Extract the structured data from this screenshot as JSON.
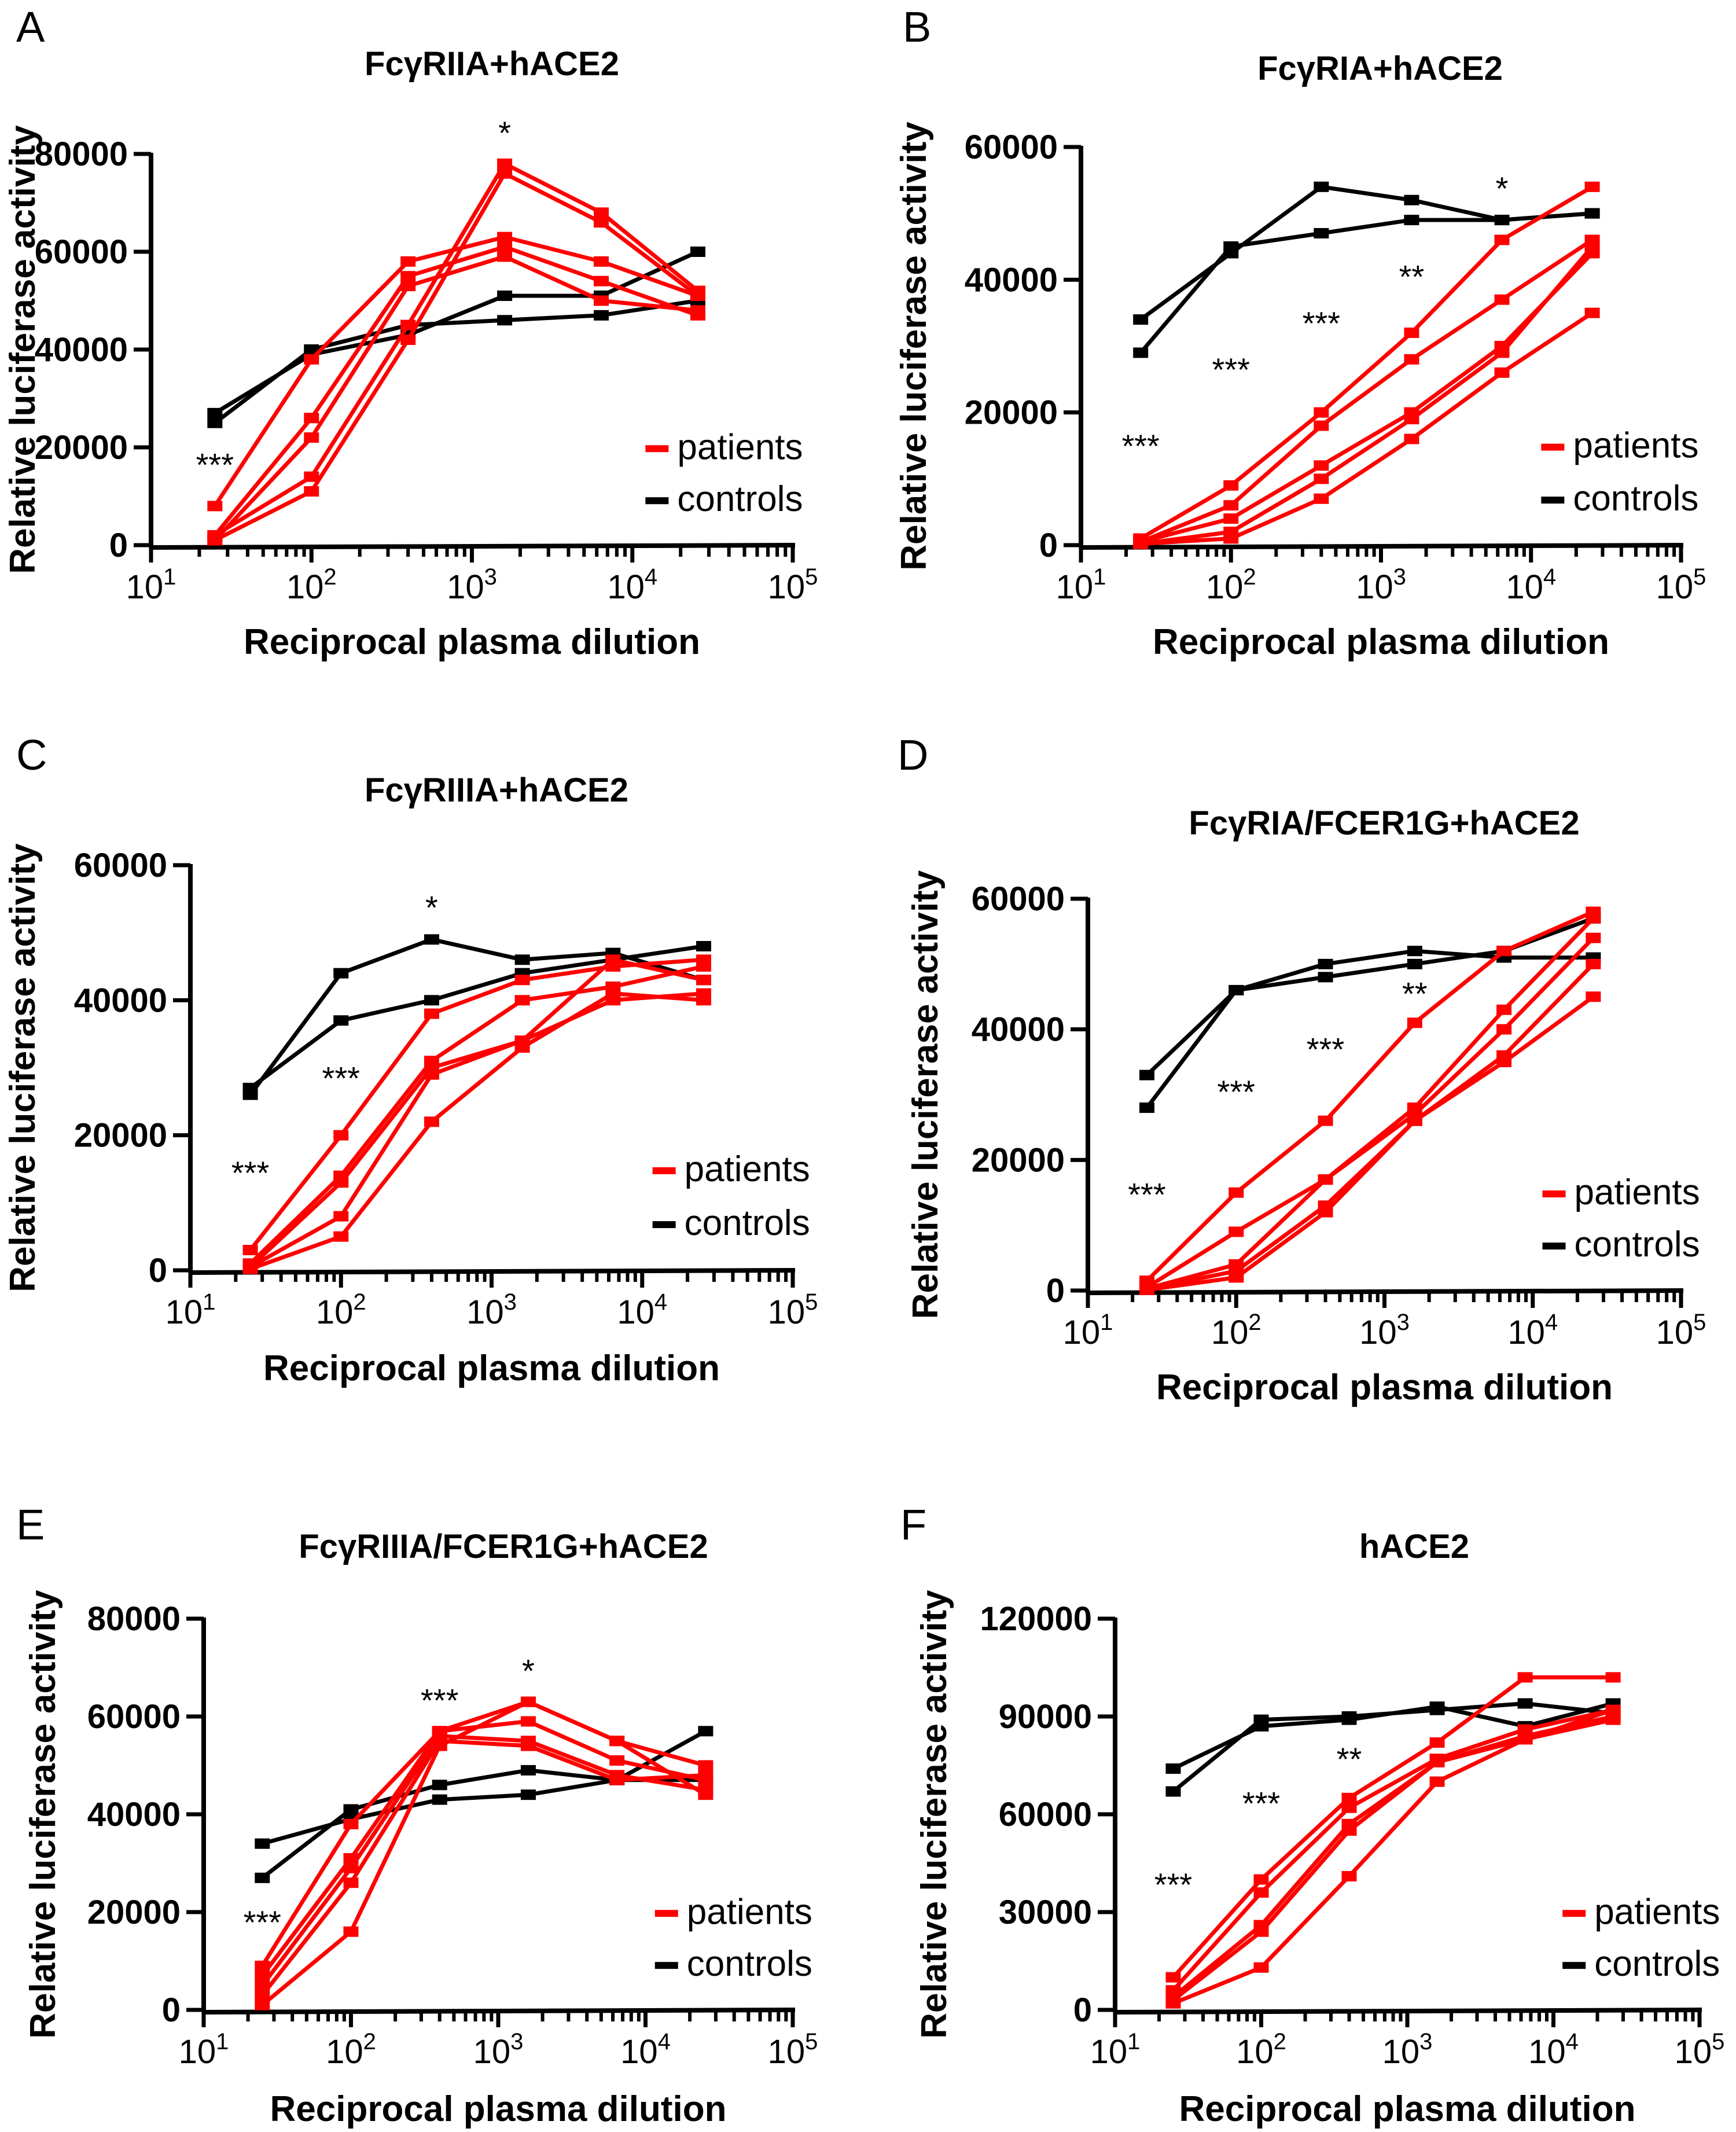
{
  "chart_data": [
    {
      "panel": "A",
      "type": "line",
      "title": "FcγRIIA+hACE2",
      "xlabel": "Reciprocal plasma dilution",
      "ylabel": "Relative luciferase activity",
      "xscale": "log",
      "xlim": [
        10,
        100000
      ],
      "ylim": [
        0,
        80000
      ],
      "yticks": [
        0,
        20000,
        40000,
        60000,
        80000
      ],
      "x": [
        25,
        100,
        400,
        1600,
        6400,
        25600
      ],
      "legend": {
        "position": "bottom-right",
        "entries": [
          {
            "label": "patients",
            "color": "#ff0000"
          },
          {
            "label": "controls",
            "color": "#000000"
          }
        ]
      },
      "series": [
        {
          "group": "patients",
          "values": [
            8000,
            38000,
            58000,
            63000,
            58000,
            51000
          ]
        },
        {
          "group": "patients",
          "values": [
            2000,
            26000,
            55000,
            61000,
            54000,
            47000
          ]
        },
        {
          "group": "patients",
          "values": [
            1000,
            22000,
            53000,
            59000,
            50000,
            48000
          ]
        },
        {
          "group": "patients",
          "values": [
            2000,
            14000,
            45000,
            78000,
            68000,
            52000
          ]
        },
        {
          "group": "patients",
          "values": [
            1000,
            11000,
            42000,
            76000,
            66000,
            51000
          ]
        },
        {
          "group": "controls",
          "values": [
            25000,
            40000,
            45000,
            46000,
            47000,
            50000
          ]
        },
        {
          "group": "controls",
          "values": [
            27000,
            39000,
            43000,
            51000,
            51000,
            60000
          ]
        }
      ],
      "significance": [
        {
          "x": 25,
          "label": "***"
        },
        {
          "x": 1600,
          "label": "*"
        }
      ]
    },
    {
      "panel": "B",
      "type": "line",
      "title": "FcγRIA+hACE2",
      "xlabel": "Reciprocal plasma dilution",
      "ylabel": "Relative luciferase activity",
      "xscale": "log",
      "xlim": [
        10,
        100000
      ],
      "ylim": [
        0,
        60000
      ],
      "yticks": [
        0,
        20000,
        40000,
        60000
      ],
      "x": [
        25,
        100,
        400,
        1600,
        6400,
        25600
      ],
      "legend": {
        "position": "bottom-right",
        "entries": [
          {
            "label": "patients",
            "color": "#ff0000"
          },
          {
            "label": "controls",
            "color": "#000000"
          }
        ]
      },
      "series": [
        {
          "group": "patients",
          "values": [
            1000,
            9000,
            20000,
            32000,
            46000,
            54000
          ]
        },
        {
          "group": "patients",
          "values": [
            500,
            6000,
            18000,
            28000,
            37000,
            46000
          ]
        },
        {
          "group": "patients",
          "values": [
            500,
            4000,
            12000,
            20000,
            30000,
            44000
          ]
        },
        {
          "group": "patients",
          "values": [
            200,
            2000,
            10000,
            19000,
            29000,
            45000
          ]
        },
        {
          "group": "patients",
          "values": [
            200,
            1000,
            7000,
            16000,
            26000,
            35000
          ]
        },
        {
          "group": "controls",
          "values": [
            34000,
            44000,
            54000,
            52000,
            49000,
            50000
          ]
        },
        {
          "group": "controls",
          "values": [
            29000,
            45000,
            47000,
            49000,
            49000,
            50000
          ]
        }
      ],
      "significance": [
        {
          "x": 25,
          "label": "***"
        },
        {
          "x": 100,
          "label": "***"
        },
        {
          "x": 400,
          "label": "***"
        },
        {
          "x": 1600,
          "label": "**"
        },
        {
          "x": 6400,
          "label": "*"
        }
      ]
    },
    {
      "panel": "C",
      "type": "line",
      "title": "FcγRIIIA+hACE2",
      "xlabel": "Reciprocal plasma dilution",
      "ylabel": "Relative luciferase activity",
      "xscale": "log",
      "xlim": [
        10,
        100000
      ],
      "ylim": [
        0,
        60000
      ],
      "yticks": [
        0,
        20000,
        40000,
        60000
      ],
      "x": [
        25,
        100,
        400,
        1600,
        6400,
        25600
      ],
      "legend": {
        "position": "bottom-right",
        "entries": [
          {
            "label": "patients",
            "color": "#ff0000"
          },
          {
            "label": "controls",
            "color": "#000000"
          }
        ]
      },
      "series": [
        {
          "group": "patients",
          "values": [
            3000,
            20000,
            38000,
            43000,
            45000,
            46000
          ]
        },
        {
          "group": "patients",
          "values": [
            1000,
            14000,
            31000,
            40000,
            42000,
            45000
          ]
        },
        {
          "group": "patients",
          "values": [
            500,
            13000,
            30000,
            34000,
            46000,
            43000
          ]
        },
        {
          "group": "patients",
          "values": [
            500,
            8000,
            29000,
            34000,
            40000,
            41000
          ]
        },
        {
          "group": "patients",
          "values": [
            200,
            5000,
            22000,
            33000,
            41000,
            40000
          ]
        },
        {
          "group": "controls",
          "values": [
            26000,
            44000,
            49000,
            46000,
            47000,
            43000
          ]
        },
        {
          "group": "controls",
          "values": [
            27000,
            37000,
            40000,
            44000,
            46000,
            48000
          ]
        }
      ],
      "significance": [
        {
          "x": 25,
          "label": "***"
        },
        {
          "x": 100,
          "label": "***"
        },
        {
          "x": 400,
          "label": "*"
        }
      ]
    },
    {
      "panel": "D",
      "type": "line",
      "title": "FcγRIA/FCER1G+hACE2",
      "xlabel": "Reciprocal plasma dilution",
      "ylabel": "Relative luciferase activity",
      "xscale": "log",
      "xlim": [
        10,
        100000
      ],
      "ylim": [
        0,
        60000
      ],
      "yticks": [
        0,
        20000,
        40000,
        60000
      ],
      "x": [
        25,
        100,
        400,
        1600,
        6400,
        25600
      ],
      "legend": {
        "position": "bottom-right",
        "entries": [
          {
            "label": "patients",
            "color": "#ff0000"
          },
          {
            "label": "controls",
            "color": "#000000"
          }
        ]
      },
      "series": [
        {
          "group": "patients",
          "values": [
            1500,
            15000,
            26000,
            41000,
            52000,
            58000
          ]
        },
        {
          "group": "patients",
          "values": [
            500,
            9000,
            17000,
            28000,
            43000,
            57000
          ]
        },
        {
          "group": "patients",
          "values": [
            300,
            4000,
            17000,
            27000,
            40000,
            54000
          ]
        },
        {
          "group": "patients",
          "values": [
            200,
            3000,
            13000,
            26000,
            36000,
            50000
          ]
        },
        {
          "group": "patients",
          "values": [
            100,
            2000,
            12000,
            26000,
            35000,
            45000
          ]
        },
        {
          "group": "controls",
          "values": [
            33000,
            46000,
            50000,
            52000,
            51000,
            51000
          ]
        },
        {
          "group": "controls",
          "values": [
            28000,
            46000,
            48000,
            50000,
            52000,
            57000
          ]
        }
      ],
      "significance": [
        {
          "x": 25,
          "label": "***"
        },
        {
          "x": 100,
          "label": "***"
        },
        {
          "x": 400,
          "label": "***"
        },
        {
          "x": 1600,
          "label": "**"
        }
      ]
    },
    {
      "panel": "E",
      "type": "line",
      "title": "FcγRIIIA/FCER1G+hACE2",
      "xlabel": "Reciprocal plasma dilution",
      "ylabel": "Relative luciferase activity",
      "xscale": "log",
      "xlim": [
        10,
        100000
      ],
      "ylim": [
        0,
        80000
      ],
      "yticks": [
        0,
        20000,
        40000,
        60000,
        80000
      ],
      "x": [
        25,
        100,
        400,
        1600,
        6400,
        25600
      ],
      "legend": {
        "position": "bottom-right",
        "entries": [
          {
            "label": "patients",
            "color": "#ff0000"
          },
          {
            "label": "controls",
            "color": "#000000"
          }
        ]
      },
      "series": [
        {
          "group": "patients",
          "values": [
            9000,
            38000,
            57000,
            63000,
            55000,
            44000
          ]
        },
        {
          "group": "patients",
          "values": [
            7000,
            31000,
            57000,
            59000,
            51000,
            47000
          ]
        },
        {
          "group": "patients",
          "values": [
            5000,
            29000,
            56000,
            55000,
            48000,
            45000
          ]
        },
        {
          "group": "patients",
          "values": [
            3000,
            26000,
            55000,
            54000,
            47000,
            48000
          ]
        },
        {
          "group": "patients",
          "values": [
            1000,
            16000,
            54000,
            63000,
            55000,
            50000
          ]
        },
        {
          "group": "controls",
          "values": [
            34000,
            39000,
            43000,
            44000,
            47000,
            57000
          ]
        },
        {
          "group": "controls",
          "values": [
            27000,
            41000,
            46000,
            49000,
            47000,
            47000
          ]
        }
      ],
      "significance": [
        {
          "x": 25,
          "label": "***"
        },
        {
          "x": 400,
          "label": "***"
        },
        {
          "x": 1600,
          "label": "*"
        }
      ]
    },
    {
      "panel": "F",
      "type": "line",
      "title": "hACE2",
      "xlabel": "Reciprocal plasma dilution",
      "ylabel": "Relative luciferase activity",
      "xscale": "log",
      "xlim": [
        10,
        100000
      ],
      "ylim": [
        0,
        120000
      ],
      "yticks": [
        0,
        30000,
        60000,
        90000,
        120000
      ],
      "x": [
        25,
        100,
        400,
        1600,
        6400,
        25600
      ],
      "legend": {
        "position": "bottom-right",
        "entries": [
          {
            "label": "patients",
            "color": "#ff0000"
          },
          {
            "label": "controls",
            "color": "#000000"
          }
        ]
      },
      "series": [
        {
          "group": "patients",
          "values": [
            10000,
            40000,
            65000,
            82000,
            102000,
            102000
          ]
        },
        {
          "group": "patients",
          "values": [
            6000,
            36000,
            62000,
            77000,
            86000,
            92000
          ]
        },
        {
          "group": "patients",
          "values": [
            4000,
            26000,
            57000,
            76000,
            84000,
            90000
          ]
        },
        {
          "group": "patients",
          "values": [
            3000,
            24000,
            55000,
            76000,
            83000,
            92000
          ]
        },
        {
          "group": "patients",
          "values": [
            2000,
            13000,
            41000,
            70000,
            83000,
            89000
          ]
        },
        {
          "group": "controls",
          "values": [
            74000,
            87000,
            89000,
            93000,
            87000,
            94000
          ]
        },
        {
          "group": "controls",
          "values": [
            67000,
            89000,
            90000,
            92000,
            94000,
            91000
          ]
        }
      ],
      "significance": [
        {
          "x": 25,
          "label": "***"
        },
        {
          "x": 100,
          "label": "***"
        },
        {
          "x": 400,
          "label": "**"
        }
      ]
    }
  ]
}
